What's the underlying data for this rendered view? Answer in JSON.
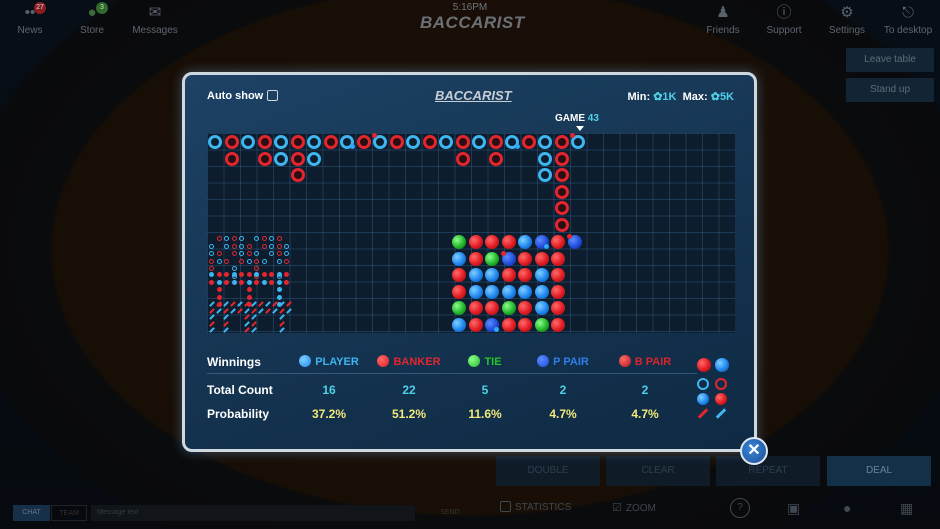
{
  "topnav": {
    "items_left": [
      {
        "label": "News",
        "icon": "news-icon",
        "badge": "27"
      },
      {
        "label": "Store",
        "icon": "store-icon",
        "badge": "3"
      },
      {
        "label": "Messages",
        "icon": "envelope-icon"
      }
    ],
    "time": "5:16PM",
    "logo": "BACCARIST",
    "items_right": [
      {
        "label": "Friends",
        "icon": "friends-icon"
      },
      {
        "label": "Support",
        "icon": "question-icon"
      },
      {
        "label": "Settings",
        "icon": "gear-icon"
      },
      {
        "label": "To desktop",
        "icon": "exit-icon"
      }
    ]
  },
  "side_buttons": {
    "leave_table": "Leave table",
    "stand_up": "Stand up"
  },
  "modal": {
    "auto_show_label": "Auto show",
    "auto_show_checked": false,
    "logo": "BACCARIST",
    "min_label": "Min:",
    "min_value": "1K",
    "max_label": "Max:",
    "max_value": "5K",
    "game_label": "GAME",
    "game_number": "43",
    "big_road": [
      [
        "P"
      ],
      [
        "B",
        "B"
      ],
      [
        "P"
      ],
      [
        "B",
        "B"
      ],
      [
        "P",
        "P"
      ],
      [
        "B",
        "B",
        "B"
      ],
      [
        "P",
        "P"
      ],
      [
        "B"
      ],
      [
        "P*"
      ],
      [
        "B"
      ],
      [
        "P^"
      ],
      [
        "B"
      ],
      [
        "P"
      ],
      [
        "B"
      ],
      [
        "P"
      ],
      [
        "B",
        "B"
      ],
      [
        "P"
      ],
      [
        "B",
        "B"
      ],
      [
        "P*"
      ],
      [
        "B"
      ],
      [
        "P",
        "P",
        "P"
      ],
      [
        "B",
        "B",
        "B",
        "B",
        "B",
        "B"
      ],
      [
        "P^"
      ]
    ],
    "bead_plate": [
      [
        "T",
        "P",
        "B",
        "B",
        "T",
        "P"
      ],
      [
        "B",
        "B",
        "P",
        "P",
        "B",
        "B"
      ],
      [
        "B",
        "T",
        "P",
        "P",
        "B",
        "PP"
      ],
      [
        "B",
        "BP",
        "B",
        "P",
        "T",
        "B"
      ],
      [
        "P",
        "B",
        "B",
        "P",
        "B",
        "B"
      ],
      [
        "PP",
        "B",
        "P",
        "P",
        "P",
        "T"
      ],
      [
        "B",
        "B",
        "B",
        "B",
        "B",
        "B"
      ],
      [
        "BP"
      ]
    ],
    "stats": {
      "row_labels": {
        "winnings": "Winnings",
        "total_count": "Total Count",
        "probability": "Probability"
      },
      "columns": [
        {
          "name": "PLAYER",
          "color": "#3db5ee",
          "count": "16",
          "probability": "37.2%"
        },
        {
          "name": "BANKER",
          "color": "#e3262d",
          "count": "22",
          "probability": "51.2%"
        },
        {
          "name": "TIE",
          "color": "#22c52a",
          "count": "5",
          "probability": "11.6%"
        },
        {
          "name": "P PAIR",
          "color": "#2f7fe8",
          "count": "2",
          "probability": "4.7%"
        },
        {
          "name": "B PAIR",
          "color": "#d8252b",
          "count": "2",
          "probability": "4.7%"
        }
      ]
    },
    "close_icon": "close-icon"
  },
  "action_buttons": [
    "DOUBLE",
    "CLEAR",
    "REPEAT",
    "DEAL"
  ],
  "bottom": {
    "chat_tab": "CHAT",
    "second_tab": "TEAM",
    "message_placeholder": "Message text",
    "send": "SEND",
    "statistics_label": "STATISTICS",
    "statistics_checked": false,
    "zoom_label": "ZOOM",
    "zoom_checked": true
  },
  "colors": {
    "banker": "#e3262d",
    "player": "#3db5ee",
    "tie": "#22c52a",
    "accent": "#4ed1e8",
    "probability": "#f2e97a"
  }
}
